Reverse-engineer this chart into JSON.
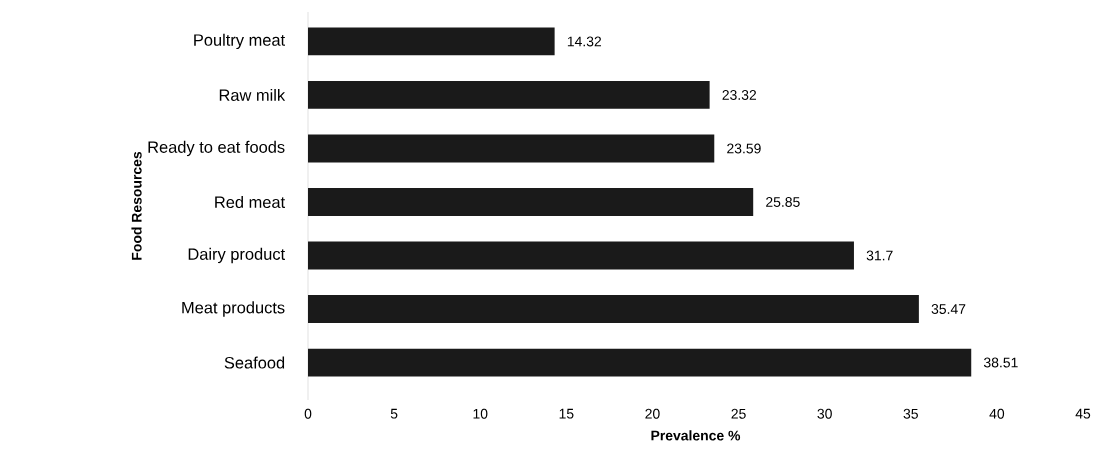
{
  "chart_data": {
    "type": "bar",
    "orientation": "horizontal",
    "xlabel": "Prevalence %",
    "ylabel": "Food Resources",
    "categories": [
      "Poultry meat",
      "Raw milk",
      "Ready to eat foods",
      "Red meat",
      "Dairy product",
      "Meat products",
      "Seafood"
    ],
    "values": [
      14.32,
      23.32,
      23.59,
      25.85,
      31.7,
      35.47,
      38.51
    ],
    "color": "#1a1a1a",
    "xlim": [
      0,
      45
    ],
    "xticks": [
      0,
      5,
      10,
      15,
      20,
      25,
      30,
      35,
      40,
      45
    ],
    "data_labels": true,
    "grid": false
  }
}
